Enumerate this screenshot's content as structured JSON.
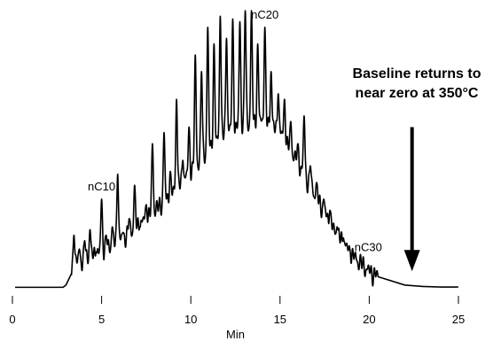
{
  "chart_data": {
    "type": "line",
    "title": "",
    "xlabel": "Min",
    "ylabel": "",
    "xlim": [
      0,
      25
    ],
    "ylim": [
      0,
      100
    ],
    "x_ticks": [
      0,
      5,
      10,
      15,
      20,
      25
    ],
    "x_tick_labels": [
      "0",
      "5",
      "10",
      "15",
      "20",
      "25"
    ],
    "grid": false,
    "legend": "none",
    "baseline_envelope": {
      "x": [
        0,
        2.8,
        3.0,
        3.3,
        3.5,
        4,
        5,
        6,
        7,
        8,
        9,
        10,
        11,
        12,
        13,
        14,
        15,
        16,
        17,
        18,
        19,
        20,
        20.5,
        21,
        21.5,
        22,
        23,
        24,
        25
      ],
      "y": [
        0,
        0,
        1,
        5,
        9,
        10,
        13,
        17,
        22,
        28,
        34,
        42,
        50,
        56,
        59,
        60,
        56,
        45,
        33,
        21,
        12,
        6,
        4,
        3,
        2,
        1,
        0.5,
        0.3,
        0.3
      ]
    },
    "peaks": {
      "x": [
        3.45,
        3.75,
        4.05,
        4.35,
        4.7,
        5.0,
        5.25,
        5.6,
        5.9,
        6.2,
        6.55,
        6.85,
        7.15,
        7.5,
        7.85,
        8.15,
        8.5,
        8.85,
        9.2,
        9.55,
        9.9,
        10.25,
        10.6,
        10.95,
        11.3,
        11.65,
        12.0,
        12.35,
        12.75,
        13.05,
        13.4,
        13.75,
        14.15,
        14.5,
        14.9,
        15.25,
        15.6,
        16.0,
        16.35,
        16.7,
        17.05,
        17.45,
        17.8,
        18.2,
        18.55,
        18.9,
        19.25,
        19.6
      ],
      "y": [
        19,
        14,
        17,
        21,
        13,
        32,
        19,
        22,
        41,
        20,
        25,
        37,
        22,
        30,
        52,
        25,
        56,
        42,
        68,
        46,
        58,
        84,
        78,
        94,
        88,
        98,
        90,
        97,
        96,
        100,
        100,
        88,
        94,
        78,
        70,
        68,
        60,
        52,
        62,
        44,
        38,
        32,
        28,
        22,
        18,
        14,
        10,
        6
      ]
    },
    "annotations": [
      {
        "text": "nC10",
        "x": 5.0,
        "y": 32
      },
      {
        "text": "nC20",
        "x": 14.15,
        "y": 94
      },
      {
        "text": "nC30",
        "x": 19.25,
        "y": 10
      }
    ],
    "note_lines": [
      "Baseline returns to",
      "near zero at 350°C"
    ],
    "arrow": {
      "x": 22.4,
      "y_from": 58,
      "y_to": 6
    }
  }
}
